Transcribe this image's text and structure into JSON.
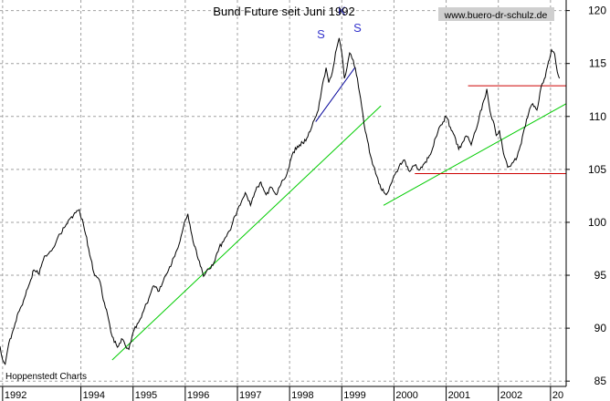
{
  "chart_data": {
    "type": "line",
    "title": "Bund Future seit Juni 1992",
    "watermark": "www.buero-dr-schulz.de",
    "source_label": "Hoppenstedt Charts",
    "x_tick_labels": [
      "1992",
      "1994",
      "1995",
      "1996",
      "1997",
      "1998",
      "1999",
      "2000",
      "2001",
      "2002",
      "20"
    ],
    "x_tick_years": [
      1992.5,
      1994.0,
      1995.0,
      1996.0,
      1997.0,
      1998.0,
      1999.0,
      2000.0,
      2001.0,
      2002.0,
      2003.0
    ],
    "xlim": [
      1992.45,
      2003.3
    ],
    "ylim": [
      84.5,
      121
    ],
    "y_ticks": [
      85,
      90,
      95,
      100,
      105,
      110,
      115,
      120
    ],
    "y_tick_labels": [
      "85",
      "90",
      "95",
      "100",
      "105",
      "110",
      "115",
      "120"
    ],
    "grid": true,
    "series": [
      {
        "color": "#000000",
        "points": [
          [
            1992.45,
            88.3
          ],
          [
            1992.5,
            87.0
          ],
          [
            1992.55,
            86.6
          ],
          [
            1992.62,
            88.6
          ],
          [
            1992.7,
            89.8
          ],
          [
            1992.8,
            91.5
          ],
          [
            1992.9,
            92.6
          ],
          [
            1993.0,
            94.0
          ],
          [
            1993.1,
            95.5
          ],
          [
            1993.2,
            95.1
          ],
          [
            1993.3,
            96.8
          ],
          [
            1993.4,
            97.2
          ],
          [
            1993.5,
            97.8
          ],
          [
            1993.6,
            98.9
          ],
          [
            1993.7,
            99.6
          ],
          [
            1993.8,
            100.4
          ],
          [
            1993.9,
            100.9
          ],
          [
            1993.97,
            101.2
          ],
          [
            1994.05,
            99.8
          ],
          [
            1994.15,
            97.5
          ],
          [
            1994.25,
            95.2
          ],
          [
            1994.35,
            94.6
          ],
          [
            1994.45,
            92.4
          ],
          [
            1994.55,
            90.4
          ],
          [
            1994.6,
            89.2
          ],
          [
            1994.7,
            88.2
          ],
          [
            1994.78,
            89.0
          ],
          [
            1994.85,
            88.4
          ],
          [
            1994.92,
            88.0
          ],
          [
            1995.0,
            89.6
          ],
          [
            1995.1,
            90.5
          ],
          [
            1995.2,
            91.6
          ],
          [
            1995.3,
            92.8
          ],
          [
            1995.4,
            94.0
          ],
          [
            1995.5,
            93.5
          ],
          [
            1995.6,
            94.8
          ],
          [
            1995.7,
            95.8
          ],
          [
            1995.8,
            96.8
          ],
          [
            1995.9,
            98.2
          ],
          [
            1996.0,
            100.2
          ],
          [
            1996.05,
            100.8
          ],
          [
            1996.15,
            98.2
          ],
          [
            1996.25,
            96.5
          ],
          [
            1996.35,
            94.9
          ],
          [
            1996.45,
            95.6
          ],
          [
            1996.55,
            96.2
          ],
          [
            1996.65,
            97.6
          ],
          [
            1996.75,
            98.4
          ],
          [
            1996.85,
            99.2
          ],
          [
            1996.95,
            100.6
          ],
          [
            1997.05,
            101.6
          ],
          [
            1997.15,
            102.8
          ],
          [
            1997.25,
            101.6
          ],
          [
            1997.35,
            103.0
          ],
          [
            1997.45,
            103.8
          ],
          [
            1997.55,
            102.6
          ],
          [
            1997.65,
            103.3
          ],
          [
            1997.75,
            102.6
          ],
          [
            1997.85,
            103.9
          ],
          [
            1997.95,
            104.6
          ],
          [
            1998.05,
            106.4
          ],
          [
            1998.15,
            107.2
          ],
          [
            1998.25,
            107.5
          ],
          [
            1998.35,
            108.1
          ],
          [
            1998.45,
            109.5
          ],
          [
            1998.55,
            110.6
          ],
          [
            1998.65,
            113.5
          ],
          [
            1998.7,
            114.6
          ],
          [
            1998.75,
            113.2
          ],
          [
            1998.82,
            114.2
          ],
          [
            1998.9,
            116.4
          ],
          [
            1998.95,
            117.4
          ],
          [
            1999.0,
            116.0
          ],
          [
            1999.05,
            113.6
          ],
          [
            1999.1,
            114.6
          ],
          [
            1999.15,
            116.0
          ],
          [
            1999.22,
            115.3
          ],
          [
            1999.3,
            113.6
          ],
          [
            1999.38,
            111.0
          ],
          [
            1999.45,
            108.6
          ],
          [
            1999.55,
            106.3
          ],
          [
            1999.65,
            104.6
          ],
          [
            1999.75,
            103.2
          ],
          [
            1999.85,
            102.6
          ],
          [
            1999.92,
            103.4
          ],
          [
            2000.0,
            104.4
          ],
          [
            2000.1,
            105.3
          ],
          [
            2000.2,
            105.9
          ],
          [
            2000.3,
            104.8
          ],
          [
            2000.4,
            105.4
          ],
          [
            2000.5,
            105.0
          ],
          [
            2000.6,
            105.7
          ],
          [
            2000.7,
            106.4
          ],
          [
            2000.8,
            108.0
          ],
          [
            2000.9,
            109.2
          ],
          [
            2001.0,
            110.0
          ],
          [
            2001.08,
            109.0
          ],
          [
            2001.16,
            108.2
          ],
          [
            2001.24,
            106.9
          ],
          [
            2001.32,
            107.6
          ],
          [
            2001.4,
            108.1
          ],
          [
            2001.48,
            107.3
          ],
          [
            2001.56,
            108.6
          ],
          [
            2001.64,
            110.1
          ],
          [
            2001.72,
            111.5
          ],
          [
            2001.78,
            112.6
          ],
          [
            2001.84,
            110.5
          ],
          [
            2001.9,
            109.6
          ],
          [
            2001.96,
            108.2
          ],
          [
            2002.02,
            108.7
          ],
          [
            2002.1,
            106.5
          ],
          [
            2002.18,
            105.2
          ],
          [
            2002.26,
            105.6
          ],
          [
            2002.34,
            105.9
          ],
          [
            2002.42,
            107.2
          ],
          [
            2002.5,
            108.9
          ],
          [
            2002.58,
            110.3
          ],
          [
            2002.66,
            111.2
          ],
          [
            2002.74,
            110.6
          ],
          [
            2002.82,
            112.8
          ],
          [
            2002.9,
            113.7
          ],
          [
            2002.96,
            115.2
          ],
          [
            2003.02,
            116.3
          ],
          [
            2003.08,
            115.9
          ],
          [
            2003.13,
            114.2
          ],
          [
            2003.17,
            113.6
          ]
        ]
      }
    ],
    "trend_lines": [
      {
        "color": "#00cc00",
        "from": [
          1994.6,
          87.0
        ],
        "to": [
          1999.75,
          111.0
        ]
      },
      {
        "color": "#00cc00",
        "from": [
          1999.8,
          101.6
        ],
        "to": [
          2003.3,
          111.2
        ]
      },
      {
        "color": "#000099",
        "from": [
          1998.5,
          109.5
        ],
        "to": [
          1999.25,
          114.6
        ]
      },
      {
        "color": "#cc0000",
        "from": [
          2000.4,
          104.6
        ],
        "to": [
          2003.3,
          104.6
        ]
      },
      {
        "color": "#cc0000",
        "from": [
          2001.42,
          112.9
        ],
        "to": [
          2003.3,
          112.9
        ]
      }
    ],
    "annotations": [
      {
        "text": "S",
        "x": 1998.6,
        "y": 117.4,
        "color": "#3333cc"
      },
      {
        "text": "K",
        "x": 1999.0,
        "y": 119.6,
        "color": "#3333cc"
      },
      {
        "text": "S",
        "x": 1999.3,
        "y": 118.0,
        "color": "#3333cc"
      }
    ]
  }
}
